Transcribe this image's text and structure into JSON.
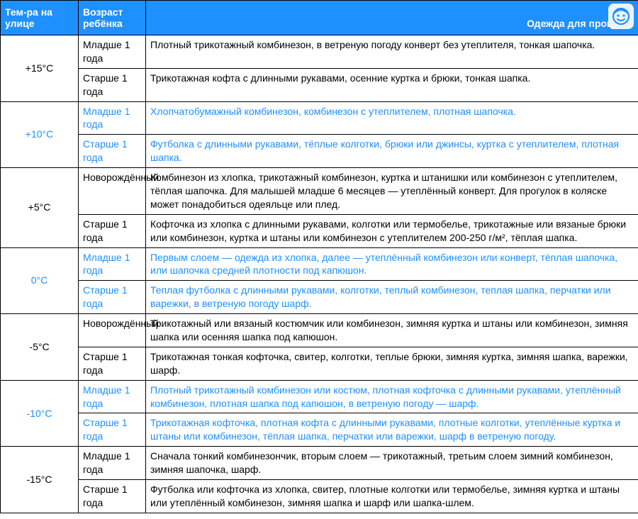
{
  "header": {
    "col1": "Тем-ра на улице",
    "col2": "Возраст ребёнка",
    "col3": "Одежда для прогулки"
  },
  "colors": {
    "header_bg": "#1e90ff",
    "header_text": "#ffffff",
    "blue_row_text": "#1e90ff",
    "border": "#000000",
    "bg": "#ffffff"
  },
  "groups": [
    {
      "temp": "+15°C",
      "blue": false,
      "rows": [
        {
          "age": "Младше 1 года",
          "clothes": "Плотный трикотажный комбинезон, в ветреную погоду конверт без утеплителя, тонкая шапочка."
        },
        {
          "age": "Старше 1 года",
          "clothes": "Трикотажная кофта с длинными рукавами, осенние куртка и брюки, тонкая шапка."
        }
      ]
    },
    {
      "temp": "+10°C",
      "blue": true,
      "rows": [
        {
          "age": "Младше 1 года",
          "clothes": "Хлопчатобумажный комбинезон, комбинезон с утеплителем, плотная шапочка."
        },
        {
          "age": "Старше 1 года",
          "clothes": "Футболка с длинными рукавами, тёплые колготки, брюки или джинсы, куртка с утеплителем, плотная шапка."
        }
      ]
    },
    {
      "temp": "+5°C",
      "blue": false,
      "rows": [
        {
          "age": "Новорождённый",
          "clothes": "Комбинезон из хлопка, трикотажный комбинезон, куртка и штанишки или комбинезон с утеплителем, тёплая шапочка. Для малышей младше 6 месяцев — утеплённый конверт. Для прогулок в коляске может понадобиться одеяльце или плед."
        },
        {
          "age": "Старше 1 года",
          "clothes": "Кофточка из хлопка с длинными рукавами, колготки или термобелье, трикотажные или вязаные брюки или комбинезон, куртка и штаны или комбинезон с утеплителем 200-250 г/м², тёплая шапка."
        }
      ]
    },
    {
      "temp": "0°C",
      "blue": true,
      "rows": [
        {
          "age": "Младше 1 года",
          "clothes": "Первым слоем — одежда из хлопка, далее — утеплённый комбинезон или конверт, тёплая шапочка, или шапочка средней плотности под капюшон."
        },
        {
          "age": "Старше 1 года",
          "clothes": "Теплая футболка с длинными рукавами, колготки, теплый комбинезон, теплая шапка, перчатки или варежки, в ветреную погоду шарф."
        }
      ]
    },
    {
      "temp": "-5°C",
      "blue": false,
      "rows": [
        {
          "age": "Новорождённый",
          "clothes": "Трикотажный или вязаный костюмчик или комбинезон, зимняя куртка и штаны или комбинезон, зимняя шапка или осенняя шапка под капюшон."
        },
        {
          "age": "Старше 1 года",
          "clothes": "Трикотажная тонкая кофточка, свитер, колготки, теплые брюки, зимняя куртка, зимняя шапка, варежки, шарф."
        }
      ]
    },
    {
      "temp": "-10°C",
      "blue": true,
      "rows": [
        {
          "age": "Младше 1 года",
          "clothes": "Плотный трикотажный комбинезон или костюм, плотная кофточка с длинными рукавами, утеплённый комбинезон, плотная шапка под капюшон, в ветреную погоду — шарф."
        },
        {
          "age": "Старше 1 года",
          "clothes": "Трикотажная кофточка, плотная кофта с длинными рукавами, плотные колготки, утеплённые куртка и штаны или комбинезон, тёплая шапка, перчатки или варежки, шарф в ветреную погоду."
        }
      ]
    },
    {
      "temp": "-15°C",
      "blue": false,
      "rows": [
        {
          "age": "Младше 1 года",
          "clothes": "Сначала тонкий комбинезончик, вторым слоем — трикотажный, третьим слоем зимний комбинезон, зимняя шапочка, шарф."
        },
        {
          "age": "Старше 1 года",
          "clothes": "Футболка или кофточка из хлопка, свитер, плотные колготки или термобелье, зимняя куртка и штаны или утеплённый комбинезон, зимняя шапка и шарф или шапка-шлем."
        }
      ]
    }
  ]
}
